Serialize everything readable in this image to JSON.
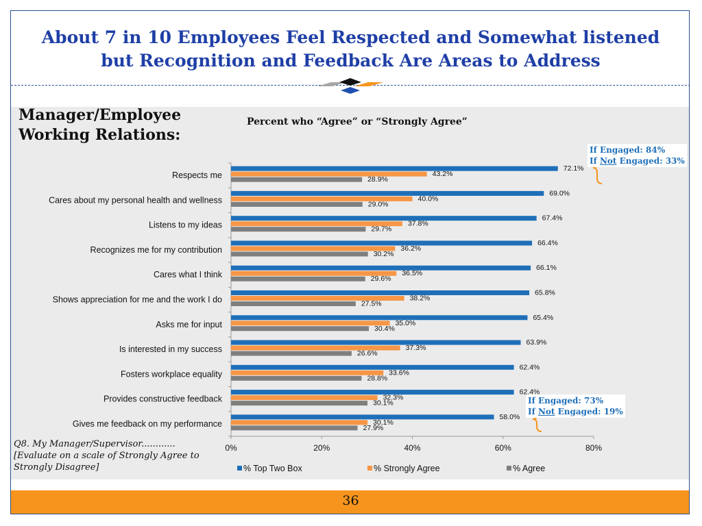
{
  "title": {
    "line1": "About 7 in 10 Employees Feel Respected and Somewhat listened",
    "line2": "but Recognition and Feedback Are Areas to Address"
  },
  "section_heading": {
    "line1": "Manager/Employee",
    "line2": "Working Relations:"
  },
  "question": {
    "line1": "Q8. My Manager/Supervisor............",
    "line2": "[Evaluate on a scale of Strongly Agree to Strongly Disagree]"
  },
  "callouts": {
    "top": {
      "prefix1": "If Engaged: 84%",
      "prefix2": "If ",
      "underline": "Not",
      "suffix2": " Engaged: 33%"
    },
    "bottom": {
      "prefix1": "If Engaged: 73%",
      "prefix2": "If ",
      "underline": "Not",
      "suffix2": " Engaged: 19%"
    }
  },
  "page_number": "36",
  "colors": {
    "title": "#1f3fa6",
    "top_two_box": "#1e6fb8",
    "strongly_agree": "#f79646",
    "agree": "#7f7f7f",
    "footer": "#f7941d",
    "callout": "#1e6fb8"
  },
  "chart_data": {
    "type": "bar",
    "orientation": "horizontal",
    "title": "Percent who “Agree” or “Strongly Agree”",
    "categories": [
      "Respects me",
      "Cares about my personal health and wellness",
      "Listens to my ideas",
      "Recognizes me for my contribution",
      "Cares what I think",
      "Shows appreciation for me and the work I do",
      "Asks me for input",
      "Is interested in my success",
      "Fosters workplace equality",
      "Provides constructive feedback",
      "Gives me feedback on my performance"
    ],
    "series": [
      {
        "name": "% Top Two Box",
        "color": "#1e6fb8",
        "values": [
          72.1,
          69.0,
          67.4,
          66.4,
          66.1,
          65.8,
          65.4,
          63.9,
          62.4,
          62.4,
          58.0
        ]
      },
      {
        "name": "% Strongly Agree",
        "color": "#f79646",
        "values": [
          43.2,
          40.0,
          37.8,
          36.2,
          36.5,
          38.2,
          35.0,
          37.3,
          33.6,
          32.3,
          30.1
        ]
      },
      {
        "name": "% Agree",
        "color": "#7f7f7f",
        "values": [
          28.9,
          29.0,
          29.7,
          30.2,
          29.6,
          27.5,
          30.4,
          26.6,
          28.8,
          30.1,
          27.9
        ]
      }
    ],
    "xlim": [
      0,
      80
    ],
    "xticks": [
      "0%",
      "20%",
      "40%",
      "60%",
      "80%"
    ],
    "xtick_values": [
      0,
      20,
      40,
      60,
      80
    ],
    "legend_position": "bottom",
    "grid": false
  }
}
